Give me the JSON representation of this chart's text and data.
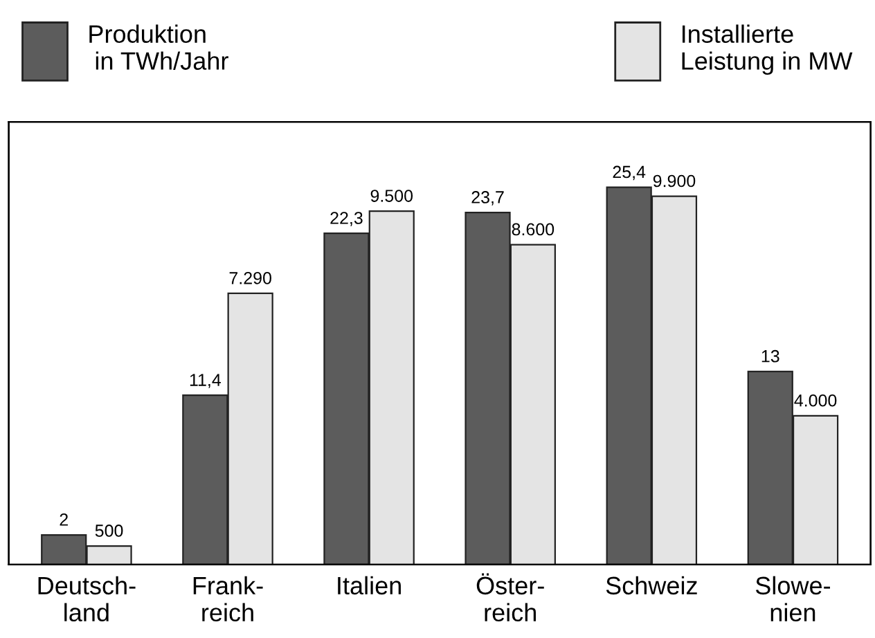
{
  "chart_data": {
    "type": "bar",
    "categories": [
      "Deutsch-\nland",
      "Frank-\nreich",
      "Italien",
      "Öster-\nreich",
      "Schweiz",
      "Slowe-\nnien"
    ],
    "series": [
      {
        "name": "Produktion\n in TWh/Jahr",
        "color": "#5c5c5c",
        "values": [
          2,
          11.4,
          22.3,
          23.7,
          25.4,
          13
        ],
        "value_labels": [
          "2",
          "11,4",
          "22,3",
          "23,7",
          "25,4",
          "13"
        ]
      },
      {
        "name": "Installierte\nLeistung in MW",
        "color": "#e4e4e4",
        "axis": "y2",
        "values": [
          500,
          7290,
          9500,
          8600,
          9900,
          4000
        ],
        "value_labels": [
          "500",
          "7.290",
          "9.500",
          "8.600",
          "9.900",
          "4.000"
        ]
      }
    ],
    "ylim": [
      0,
      29.8
    ],
    "y2lim": [
      0,
      11900
    ],
    "tick_labels": "x",
    "legend": "top",
    "grid": false
  }
}
